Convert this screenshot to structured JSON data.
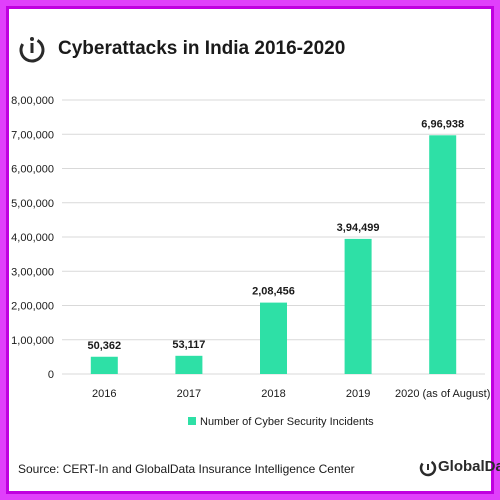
{
  "header": {
    "title": "Cyberattacks in India 2016-2020",
    "logo_icon": "globaldata-ring-icon"
  },
  "footer": {
    "source": "Source: CERT-In and GlobalData Insurance Intelligence Center",
    "brand": "GlobalData"
  },
  "colors": {
    "bar": "#2ee0a6",
    "frame_outer": "#e040fb",
    "frame_inner": "#c000e0",
    "grid": "#d9d9d9",
    "text": "#1a1a1a"
  },
  "chart_data": {
    "type": "bar",
    "title": "Cyberattacks in India 2016-2020",
    "categories": [
      "2016",
      "2017",
      "2018",
      "2019",
      "2020 (as of August)"
    ],
    "series": [
      {
        "name": "Number of Cyber Security Incidents",
        "values": [
          50362,
          53117,
          208456,
          394499,
          696938
        ],
        "labels": [
          "50,362",
          "53,117",
          "2,08,456",
          "3,94,499",
          "6,96,938"
        ]
      }
    ],
    "ylim": [
      0,
      800000
    ],
    "yticks": [
      0,
      100000,
      200000,
      300000,
      400000,
      500000,
      600000,
      700000,
      800000
    ],
    "ytick_labels": [
      "0",
      "1,00,000",
      "2,00,000",
      "3,00,000",
      "4,00,000",
      "5,00,000",
      "6,00,000",
      "7,00,000",
      "8,00,000"
    ],
    "grid": true,
    "legend": "bottom-center"
  }
}
